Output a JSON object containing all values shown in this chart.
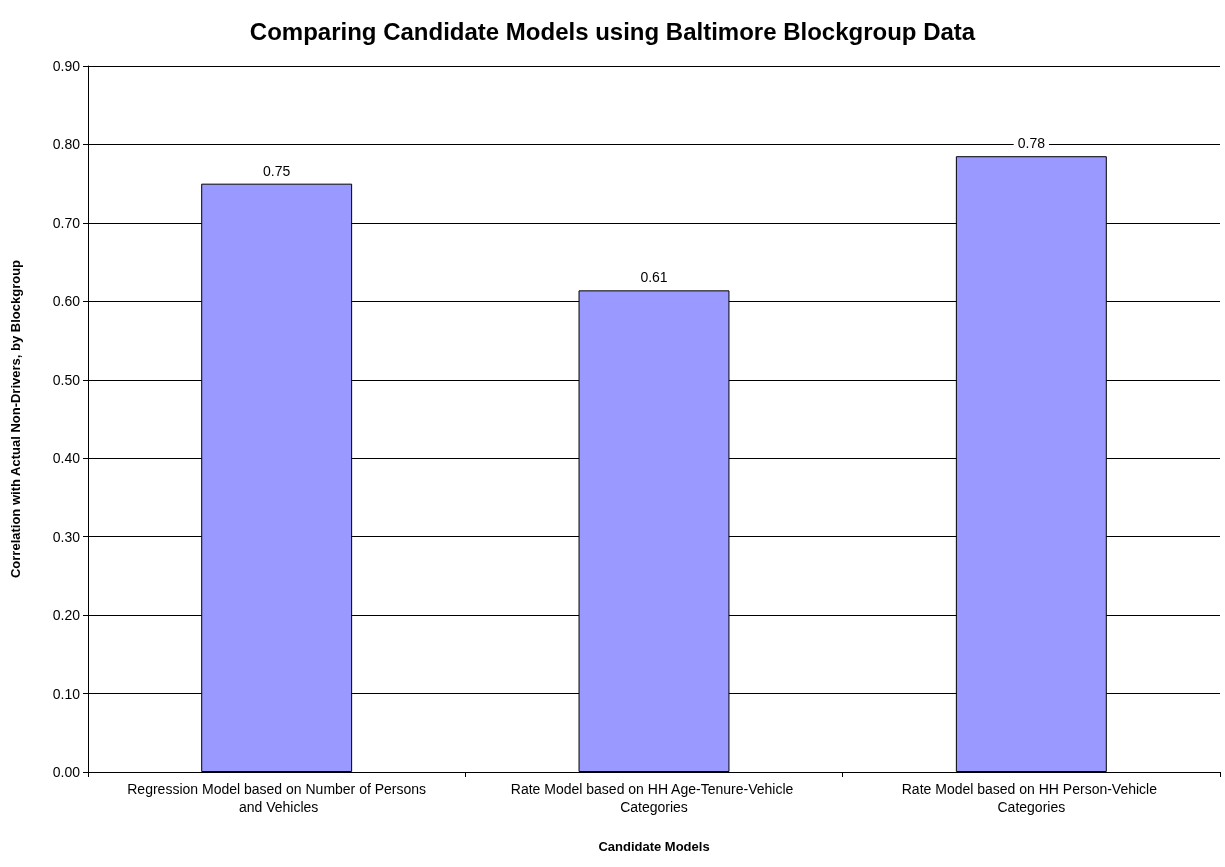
{
  "chart_data": {
    "type": "bar",
    "title": "Comparing Candidate Models using Baltimore Blockgroup Data",
    "xlabel": "Candidate Models",
    "ylabel": "Correlation with Actual Non-Drivers, by Blockgroup",
    "categories": [
      "Regression Model based on Number of Persons and Vehicles",
      "Rate Model based on HH Age-Tenure-Vehicle Categories",
      "Rate Model based on HH Person-Vehicle Categories"
    ],
    "values": [
      0.75,
      0.614,
      0.785
    ],
    "value_labels": [
      "0.75",
      "0.61",
      "0.78"
    ],
    "color": "#9999ff",
    "ylim": [
      0,
      0.9
    ],
    "yticks": [
      {
        "value": 0,
        "label": "0.00"
      },
      {
        "value": 0.1,
        "label": "0.10"
      },
      {
        "value": 0.2,
        "label": "0.20"
      },
      {
        "value": 0.3,
        "label": "0.30"
      },
      {
        "value": 0.4,
        "label": "0.40"
      },
      {
        "value": 0.5,
        "label": "0.50"
      },
      {
        "value": 0.6,
        "label": "0.60"
      },
      {
        "value": 0.7,
        "label": "0.70"
      },
      {
        "value": 0.8,
        "label": "0.80"
      },
      {
        "value": 0.9,
        "label": "0.90"
      }
    ],
    "grid": "y"
  }
}
